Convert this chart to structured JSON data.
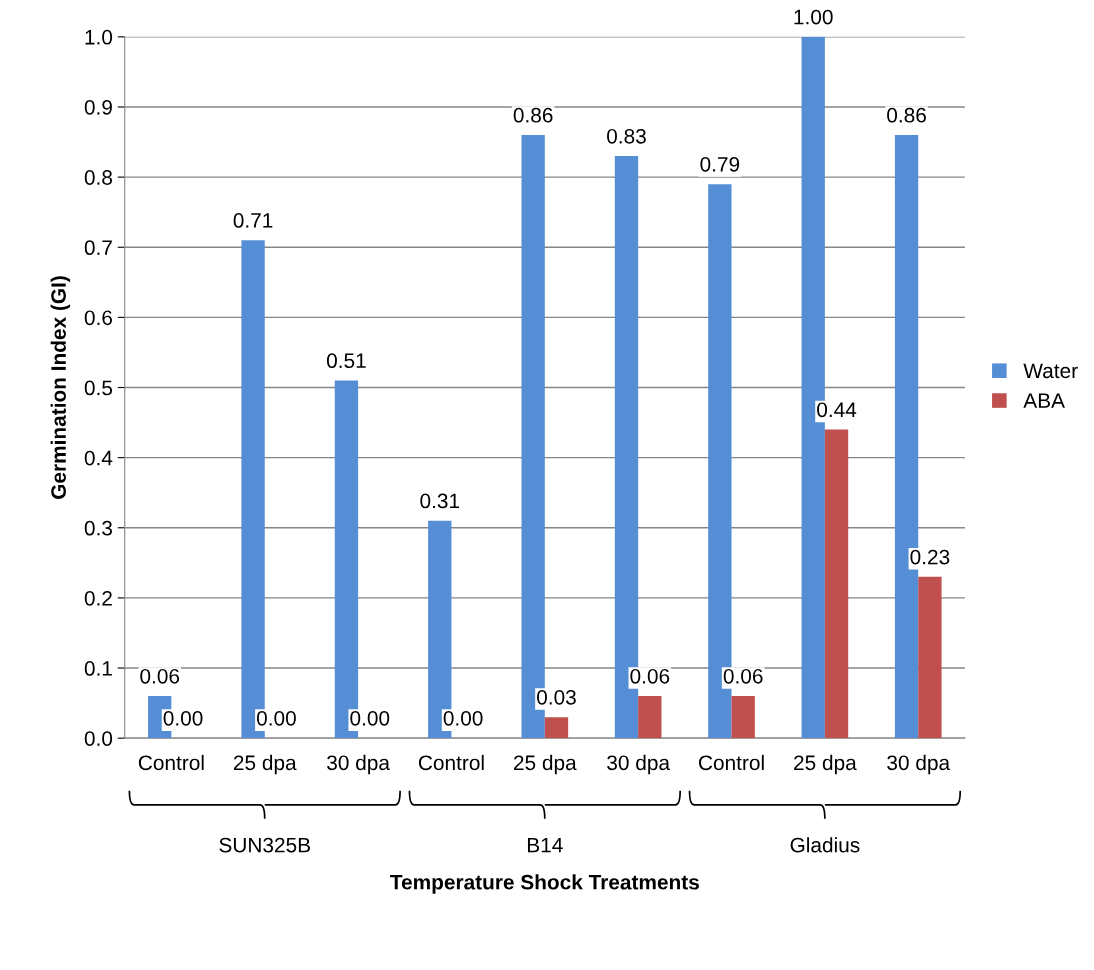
{
  "chart_data": {
    "type": "bar",
    "xlabel": "Temperature Shock Treatments",
    "ylabel": "Germination Index (GI)",
    "categories": [
      "Control",
      "25 dpa",
      "30 dpa",
      "Control",
      "25 dpa",
      "30 dpa",
      "Control",
      "25 dpa",
      "30 dpa"
    ],
    "series": [
      {
        "name": "Water",
        "color": "#558ed5",
        "values": [
          0.06,
          0.71,
          0.51,
          0.31,
          0.86,
          0.83,
          0.79,
          1.0,
          0.86
        ],
        "value_labels": [
          "0.06",
          "0.71",
          "0.51",
          "0.31",
          "0.86",
          "0.83",
          "0.79",
          "1.00",
          "0.86"
        ]
      },
      {
        "name": "ABA",
        "color": "#c0504d",
        "values": [
          0.0,
          0.0,
          0.0,
          0.0,
          0.03,
          0.06,
          0.06,
          0.44,
          0.23
        ],
        "value_labels": [
          "0.00",
          "0.00",
          "0.00",
          "0.00",
          "0.03",
          "0.06",
          "0.06",
          "0.44",
          "0.23"
        ]
      }
    ],
    "annotations": [
      "SUN325B",
      "B14",
      "Gladius"
    ],
    "ylim": [
      0,
      1.0
    ],
    "yticks": [
      {
        "value": 0,
        "label": "0.0"
      },
      0.1,
      0.2,
      0.3,
      0.4,
      0.5,
      0.6,
      0.7,
      0.8,
      0.9,
      {
        "value": 1.0,
        "label": "1.0"
      }
    ],
    "grid": "y",
    "legend": "right"
  }
}
